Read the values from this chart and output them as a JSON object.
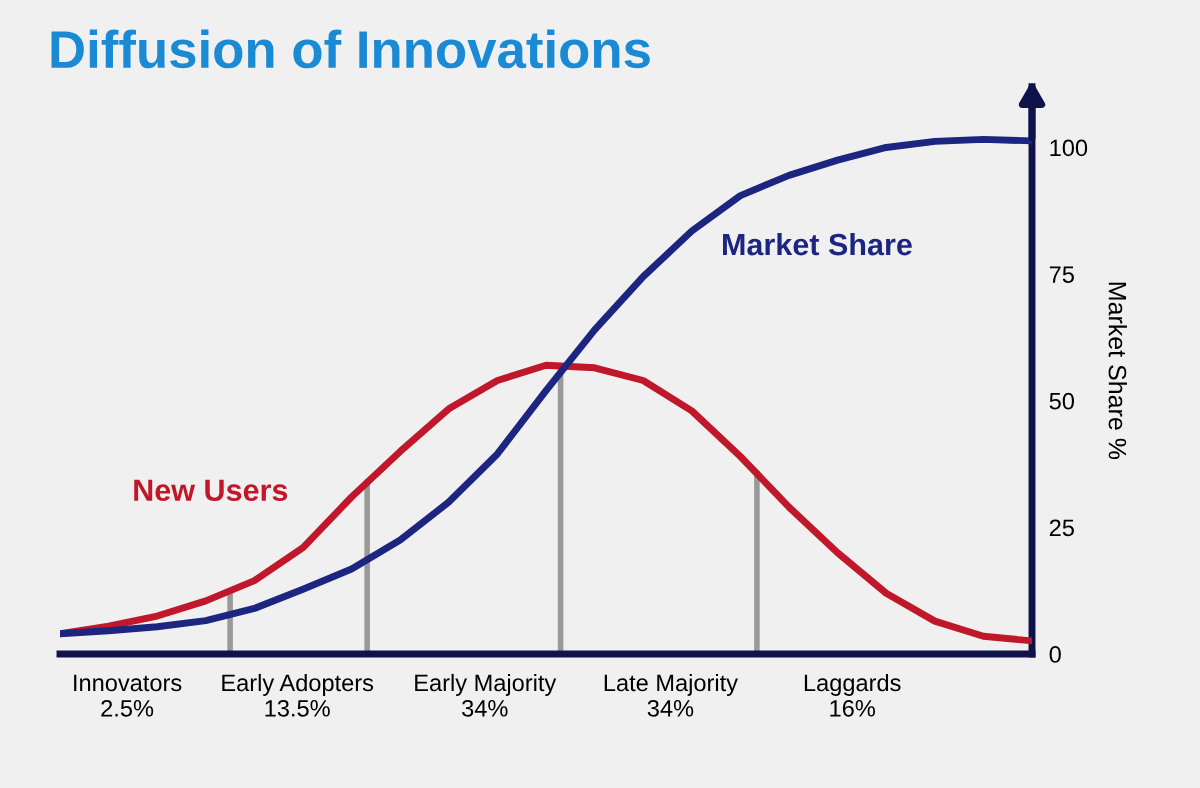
{
  "chart_data": {
    "type": "line",
    "title": "Diffusion of Innovations",
    "ylabel": "Market Share %",
    "ylim": [
      0,
      112
    ],
    "yticks": [
      0,
      25,
      50,
      75,
      100
    ],
    "categories": [
      null,
      null,
      null,
      null,
      null,
      null,
      null,
      null,
      null,
      null,
      null,
      null,
      null,
      null,
      null,
      null,
      null,
      null,
      null,
      null,
      null
    ],
    "annotations": [
      "Innovators\n2.5%",
      "Early Adopters\n13.5%",
      "Early Majority\n34%",
      "Late Majority\n34%",
      "Laggards\n16%"
    ],
    "series": [
      {
        "name": "New Users",
        "color": "#c0172a",
        "values": [
          4.0,
          5.5,
          7.5,
          10.5,
          14.5,
          21,
          31,
          40,
          48.4,
          54,
          57,
          56.5,
          54,
          48,
          39,
          29,
          20,
          12,
          6.5,
          3.5,
          2.6
        ]
      },
      {
        "name": "Market Share",
        "color": "#1c2580",
        "values": [
          4.0,
          4.6,
          5.4,
          6.6,
          9,
          12.8,
          16.8,
          22.5,
          30,
          39.5,
          52,
          64,
          74.5,
          83.5,
          90.5,
          94.5,
          97.5,
          100,
          101.2,
          101.6,
          101.3
        ]
      }
    ],
    "grid": false,
    "legend": false,
    "marker": "none",
    "line_style": "solid"
  }
}
